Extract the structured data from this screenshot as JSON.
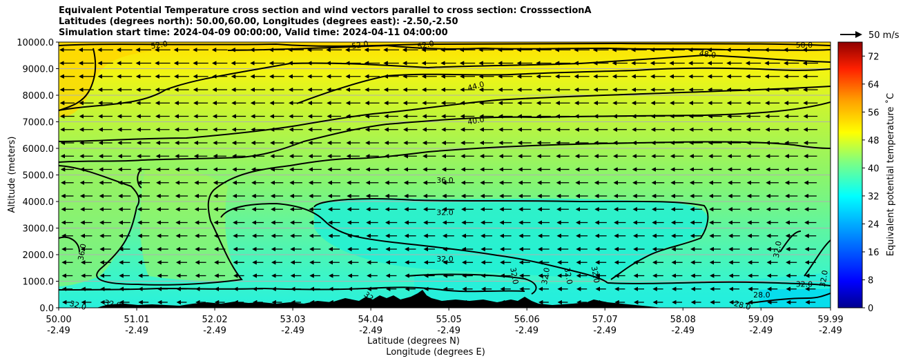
{
  "chart_data": {
    "type": "heatmap",
    "title_lines": [
      "Equivalent Potential Temperature cross section and wind vectors parallel to cross section: CrosssectionA",
      "Latitudes (degrees north): 50.00,60.00, Longitudes (degrees east): -2.50,-2.50",
      "Simulation start time: 2024-04-09 00:00:00, Valid time: 2024-04-11 04:00:00"
    ],
    "xlabel_lines": [
      "Latitude (degrees N)",
      "Longitude (degrees E)"
    ],
    "ylabel": "Altitude (meters)",
    "x_ticks": [
      {
        "lat": "50.00",
        "lon": "-2.49"
      },
      {
        "lat": "51.01",
        "lon": "-2.49"
      },
      {
        "lat": "52.02",
        "lon": "-2.49"
      },
      {
        "lat": "53.03",
        "lon": "-2.49"
      },
      {
        "lat": "54.04",
        "lon": "-2.49"
      },
      {
        "lat": "55.05",
        "lon": "-2.49"
      },
      {
        "lat": "56.06",
        "lon": "-2.49"
      },
      {
        "lat": "57.07",
        "lon": "-2.49"
      },
      {
        "lat": "58.08",
        "lon": "-2.49"
      },
      {
        "lat": "59.09",
        "lon": "-2.49"
      },
      {
        "lat": "59.99",
        "lon": "-2.49"
      }
    ],
    "xlim": [
      50.0,
      59.99
    ],
    "y_ticks": [
      "0.0",
      "1000.0",
      "2000.0",
      "3000.0",
      "4000.0",
      "5000.0",
      "6000.0",
      "7000.0",
      "8000.0",
      "9000.0",
      "10000.0"
    ],
    "ylim": [
      0,
      10000
    ],
    "grid": "horizontal",
    "colorbar": {
      "label": "Equivalent potential temperature ˚C",
      "range": [
        0,
        76
      ],
      "ticks": [
        "0",
        "8",
        "16",
        "24",
        "32",
        "40",
        "48",
        "56",
        "64",
        "72"
      ]
    },
    "wind_key": "50 m/s",
    "contour_labels": [
      {
        "text": "52.0",
        "x": 51.3,
        "y": 9900,
        "rot": -10
      },
      {
        "text": "52.0",
        "x": 53.9,
        "y": 9900,
        "rot": -10
      },
      {
        "text": "52.0",
        "x": 54.75,
        "y": 9900,
        "rot": -12
      },
      {
        "text": "50.0",
        "x": 59.65,
        "y": 9900,
        "rot": 0
      },
      {
        "text": "48.0",
        "x": 58.4,
        "y": 9550,
        "rot": 8
      },
      {
        "text": "44.0",
        "x": 55.4,
        "y": 8350,
        "rot": -15
      },
      {
        "text": "40.0",
        "x": 55.4,
        "y": 7050,
        "rot": -10
      },
      {
        "text": "36.0",
        "x": 55.0,
        "y": 4800,
        "rot": 0
      },
      {
        "text": "32.0",
        "x": 55.0,
        "y": 3600,
        "rot": 0
      },
      {
        "text": "32.0",
        "x": 55.0,
        "y": 1850,
        "rot": 0
      },
      {
        "text": "36.0",
        "x": 50.3,
        "y": 2100,
        "rot": -80
      },
      {
        "text": "32.0",
        "x": 50.25,
        "y": 100,
        "rot": 15
      },
      {
        "text": "32.0",
        "x": 50.7,
        "y": 150,
        "rot": 10
      },
      {
        "text": "32.0",
        "x": 54.05,
        "y": 350,
        "rot": 40
      },
      {
        "text": "32.0",
        "x": 55.9,
        "y": 1200,
        "rot": 80
      },
      {
        "text": "32.0",
        "x": 56.3,
        "y": 1200,
        "rot": -80
      },
      {
        "text": "32.0",
        "x": 56.6,
        "y": 1200,
        "rot": 80
      },
      {
        "text": "32.0",
        "x": 56.95,
        "y": 1250,
        "rot": 80
      },
      {
        "text": "32.0",
        "x": 59.3,
        "y": 2200,
        "rot": -80
      },
      {
        "text": "32.0",
        "x": 59.65,
        "y": 900,
        "rot": 0
      },
      {
        "text": "32.0",
        "x": 59.9,
        "y": 1100,
        "rot": -80
      },
      {
        "text": "28.0",
        "x": 59.1,
        "y": 500,
        "rot": 0
      },
      {
        "text": "28.0",
        "x": 58.85,
        "y": 100,
        "rot": 15
      }
    ]
  }
}
